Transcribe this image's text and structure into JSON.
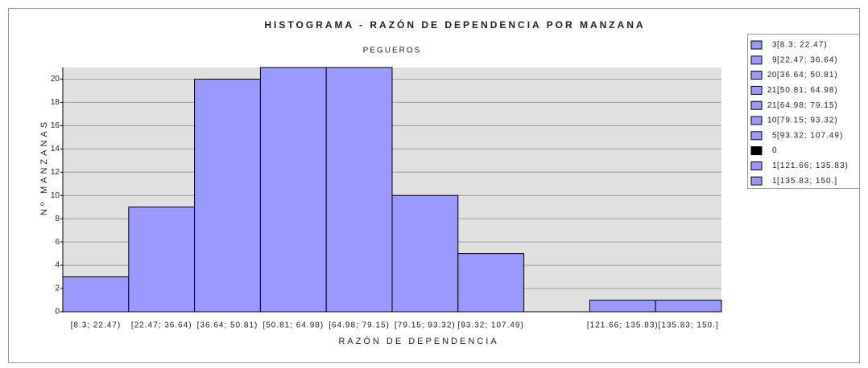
{
  "chart_data": {
    "type": "bar",
    "title": "HISTOGRAMA - RAZÓN DE DEPENDENCIA POR MANZANA",
    "subtitle": "PEGUEROS",
    "x_label": "RAZÓN DE DEPENDENCIA",
    "y_label": "Nº MANZANAS",
    "categories": [
      "[8.3; 22.47)",
      "[22.47; 36.64)",
      "[36.64; 50.81)",
      "[50.81; 64.98)",
      "[64.98; 79.15)",
      "[79.15; 93.32)",
      "[93.32; 107.49)",
      null,
      "[121.66; 135.83)",
      "[135.83; 150.]"
    ],
    "values": [
      3,
      9,
      20,
      21,
      21,
      10,
      5,
      0,
      1,
      1
    ],
    "colors": [
      "#9999ff",
      "#9999ff",
      "#9999ff",
      "#9999ff",
      "#9999ff",
      "#9999ff",
      "#9999ff",
      "#000000",
      "#9999ff",
      "#9999ff"
    ],
    "ylim": [
      0,
      21
    ],
    "yticks": [
      0,
      2,
      4,
      6,
      8,
      10,
      12,
      14,
      16,
      18,
      20
    ],
    "grid": true,
    "legend": "right"
  }
}
